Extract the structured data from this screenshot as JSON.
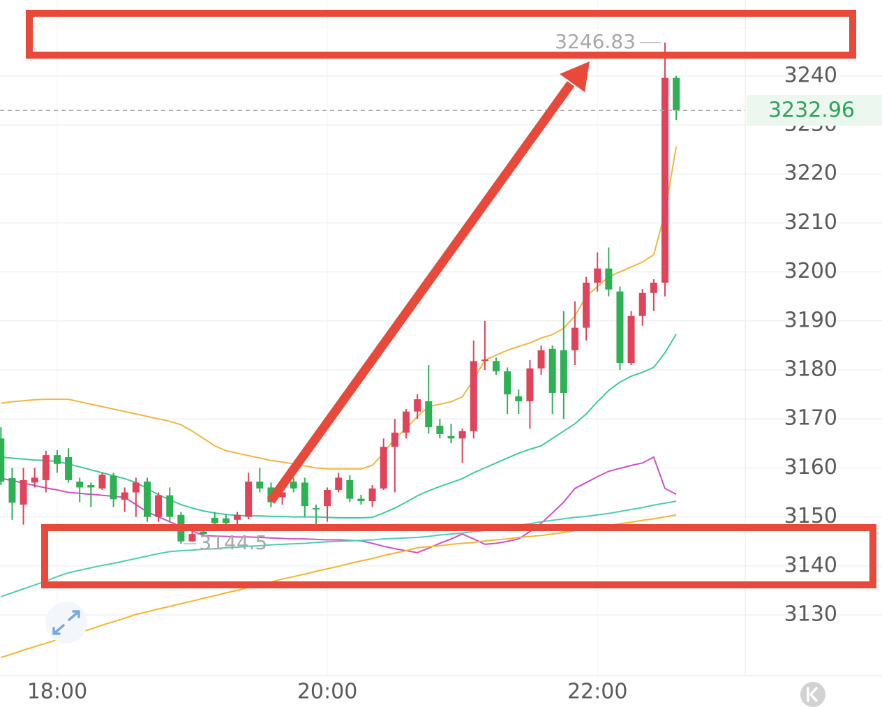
{
  "chart_data": {
    "type": "candlestick",
    "categories": [
      null,
      null,
      null,
      null,
      null,
      "18:00",
      null,
      null,
      null,
      null,
      null,
      null,
      null,
      null,
      null,
      null,
      null,
      null,
      null,
      null,
      null,
      null,
      null,
      null,
      null,
      null,
      null,
      null,
      null,
      "20:00",
      null,
      null,
      null,
      null,
      null,
      null,
      null,
      null,
      null,
      null,
      null,
      null,
      null,
      null,
      null,
      null,
      null,
      null,
      null,
      null,
      null,
      null,
      null,
      "22:00",
      null,
      null,
      null,
      null,
      null,
      null,
      null
    ],
    "ylim": [
      3117.6,
      3255.5
    ],
    "yticks": [
      3130,
      3140,
      3150,
      3160,
      3170,
      3180,
      3190,
      3200,
      3210,
      3220,
      3230,
      3240
    ],
    "grid": true,
    "up_color": "#e0435a",
    "down_color": "#2eb055",
    "candles": {
      "open": [
        3166,
        3157.9,
        3152.5,
        3157,
        3157.5,
        3162.6,
        3162.2,
        3157.2,
        3156.5,
        3155.8,
        3158.4,
        3153.5,
        3155,
        3157.2,
        3150,
        3154.4,
        3150.4,
        3145,
        3147,
        3149.8,
        3149.7,
        3149.4,
        3150,
        3157.2,
        3156,
        3154,
        3157.2,
        3157,
        3151.8,
        3152.2,
        3155.5,
        3157.5,
        3153.7,
        3153.2,
        3155.8,
        3164.3,
        3167.2,
        3171.5,
        3173.6,
        3168.6,
        3166.5,
        3166,
        3167.5,
        3181.8,
        3181.8,
        3179.7,
        3174.6,
        3173.6,
        3180.3,
        3184.3,
        3184,
        3184,
        3188.6,
        3197.8,
        3200.7,
        3196,
        3181.4,
        3191,
        3195.7,
        3197.8,
        3239.6
      ],
      "high": [
        3168.3,
        3160,
        3160,
        3160,
        3163.5,
        3163.6,
        3164,
        3158,
        3157,
        3159,
        3159,
        3156,
        3158,
        3158,
        3155,
        3156,
        3151,
        3147,
        3148,
        3151,
        3150.5,
        3151,
        3159,
        3160,
        3157,
        3156,
        3158,
        3158,
        3152.5,
        3156,
        3159,
        3158.5,
        3154.5,
        3156.5,
        3166,
        3170,
        3172,
        3175,
        3181,
        3170,
        3169,
        3168,
        3186,
        3190,
        3182.5,
        3180.5,
        3176,
        3182,
        3185,
        3185,
        3192,
        3194,
        3199,
        3204,
        3205,
        3197,
        3192,
        3196.5,
        3198.5,
        3246.83,
        3240
      ],
      "low": [
        3156.5,
        3149.4,
        3148.4,
        3156,
        3155,
        3159,
        3157,
        3153,
        3152,
        3155.5,
        3152,
        3151,
        3150,
        3149,
        3149,
        3149,
        3144.5,
        3144.93,
        3146,
        3148,
        3148,
        3148.5,
        3149.5,
        3155,
        3152,
        3152.5,
        3155,
        3150,
        3148,
        3149,
        3155,
        3153,
        3152.5,
        3152,
        3155.5,
        3155,
        3166,
        3170,
        3167,
        3166,
        3165,
        3161,
        3166,
        3180,
        3179,
        3171,
        3171,
        3168,
        3179,
        3171,
        3170,
        3181,
        3186,
        3196,
        3195,
        3180,
        3181,
        3189,
        3192,
        3195,
        3231
      ],
      "close": [
        3157.2,
        3152.9,
        3157.5,
        3158,
        3162.6,
        3160.8,
        3157.5,
        3156,
        3156,
        3158.6,
        3153.6,
        3155,
        3157,
        3150,
        3154.4,
        3150,
        3145,
        3146.5,
        3146.5,
        3148.7,
        3148.7,
        3150.4,
        3157.2,
        3155.8,
        3153,
        3155,
        3155.8,
        3152.2,
        3151.5,
        3155.5,
        3158,
        3153.7,
        3153.2,
        3155.8,
        3164.3,
        3167.2,
        3171.5,
        3174,
        3168.3,
        3166.9,
        3166,
        3167.5,
        3181.8,
        3182.1,
        3179.7,
        3175,
        3173.6,
        3180.3,
        3184,
        3175.3,
        3175.3,
        3188.6,
        3197.8,
        3200.7,
        3196.4,
        3181.4,
        3191,
        3195.7,
        3197.8,
        3239.6,
        3232.96
      ]
    },
    "lines": [
      {
        "color": "#f2b640",
        "values": [
          3173.2,
          3173.5,
          3173.7,
          3173.9,
          3174,
          3174,
          3174,
          3173.5,
          3173,
          3172.5,
          3172,
          3171.5,
          3171,
          3170.5,
          3170,
          3169.5,
          3168.8,
          3167.5,
          3166,
          3164.5,
          3163.5,
          3163,
          3162.5,
          3162,
          3161.5,
          3161.2,
          3160.8,
          3160.4,
          3160,
          3159.8,
          3159.8,
          3159.8,
          3159.8,
          3160.5,
          3163,
          3166,
          3168,
          3170.5,
          3172.5,
          3173,
          3173.5,
          3174.5,
          3178,
          3182,
          3183,
          3184,
          3184.8,
          3185.5,
          3186.5,
          3187.2,
          3188.5,
          3191,
          3195,
          3197,
          3199,
          3200,
          3201,
          3202,
          3203.5,
          3212,
          3225.6
        ]
      },
      {
        "color": "#3fc9a6",
        "values": [
          3162.2,
          3162,
          3161.8,
          3161.6,
          3161.5,
          3161.3,
          3160.8,
          3160.2,
          3159.6,
          3159,
          3158.4,
          3157.8,
          3157,
          3155.8,
          3154.5,
          3153.5,
          3152.5,
          3151.8,
          3151.2,
          3150.8,
          3150.5,
          3150.3,
          3150.2,
          3150.2,
          3150.1,
          3150.1,
          3150,
          3150,
          3150,
          3149.9,
          3149.8,
          3149.8,
          3149.8,
          3149.9,
          3150.8,
          3151.8,
          3153,
          3154.3,
          3155.3,
          3156.2,
          3157,
          3157.8,
          3159,
          3160,
          3161,
          3162,
          3163,
          3163.8,
          3164.5,
          3166,
          3167.5,
          3169,
          3171,
          3173.5,
          3175.8,
          3177.5,
          3178.7,
          3179.5,
          3180.5,
          3183.5,
          3187.3
        ]
      },
      {
        "color": "#d14fc6",
        "values": [
          3157.9,
          3157.4,
          3156.9,
          3156.4,
          3155.9,
          3155.5,
          3155,
          3154.8,
          3154.6,
          3154.4,
          3154.2,
          3154,
          3152.5,
          3151,
          3150,
          3149,
          3148,
          3147.1,
          3146.2,
          3146.1,
          3146,
          3145.9,
          3145.9,
          3145.8,
          3145.7,
          3145.6,
          3145.5,
          3145.5,
          3145.4,
          3145.3,
          3145.3,
          3145.2,
          3145.1,
          3144.6,
          3144,
          3143.5,
          3143.1,
          3142.7,
          3143.6,
          3144.6,
          3145.5,
          3146.5,
          3145.5,
          3144.4,
          3144.6,
          3145,
          3145.5,
          3147,
          3148.7,
          3150.8,
          3153,
          3155.8,
          3157,
          3158.2,
          3159.3,
          3159.9,
          3160.5,
          3161,
          3162.2,
          3155.8,
          3154.6
        ]
      },
      {
        "color": "#4fcdb2",
        "values": [
          3133.7,
          3134.5,
          3135.3,
          3136.1,
          3136.9,
          3137.8,
          3138.6,
          3139.1,
          3139.6,
          3140.1,
          3140.5,
          3141,
          3141.5,
          3142,
          3142.5,
          3142.9,
          3143.1,
          3143.2,
          3143.4,
          3143.5,
          3143.7,
          3143.8,
          3144,
          3144.1,
          3144.3,
          3144.4,
          3144.5,
          3144.6,
          3144.8,
          3144.9,
          3145,
          3145.1,
          3145.2,
          3145.3,
          3145.5,
          3145.6,
          3145.7,
          3145.8,
          3146,
          3146.3,
          3146.5,
          3146.7,
          3147,
          3147.2,
          3147.6,
          3147.9,
          3148.3,
          3148.6,
          3149,
          3149.3,
          3149.6,
          3149.9,
          3150.1,
          3150.4,
          3150.7,
          3151.1,
          3151.5,
          3151.9,
          3152.4,
          3152.8,
          3153.2
        ]
      },
      {
        "color": "#f5b52e",
        "values": [
          3121.3,
          3122,
          3122.8,
          3123.5,
          3124.2,
          3124.9,
          3125.7,
          3126.4,
          3127.1,
          3127.9,
          3128.6,
          3129.3,
          3130.1,
          3130.6,
          3131.2,
          3131.7,
          3132.3,
          3132.8,
          3133.4,
          3133.9,
          3134.5,
          3135,
          3135.6,
          3136.1,
          3136.7,
          3137.3,
          3137.8,
          3138.3,
          3138.9,
          3139.4,
          3139.9,
          3140.5,
          3141,
          3141.5,
          3142.1,
          3142.6,
          3143.1,
          3143.7,
          3143.9,
          3144.1,
          3144.4,
          3144.6,
          3144.8,
          3145.1,
          3145.3,
          3145.5,
          3145.8,
          3146,
          3146.2,
          3146.5,
          3146.8,
          3147.2,
          3147.5,
          3147.9,
          3148.2,
          3148.6,
          3148.9,
          3149.3,
          3149.6,
          3150,
          3150.4
        ]
      }
    ]
  }
}
